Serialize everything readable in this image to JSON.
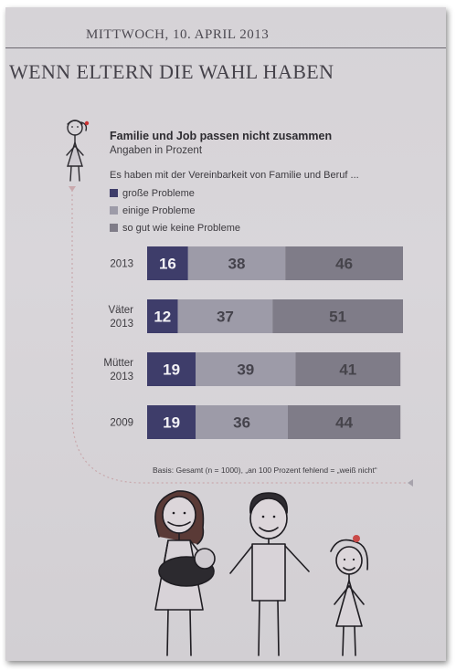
{
  "header": {
    "date": "MITTWOCH, 10. APRIL 2013",
    "headline": "WENN ELTERN DIE WAHL HABEN"
  },
  "chart_data": {
    "type": "bar",
    "orientation": "horizontal",
    "stacked": true,
    "title": "Familie und Job passen nicht zusammen",
    "subtitle": "Angaben in Prozent",
    "intro": "Es haben mit der Vereinbarkeit von Familie und Beruf ...",
    "categories": [
      [
        "2013"
      ],
      [
        "Väter",
        "2013"
      ],
      [
        "Mütter",
        "2013"
      ],
      [
        "2009"
      ]
    ],
    "series": [
      {
        "name": "große Probleme",
        "values": [
          16,
          12,
          19,
          19
        ],
        "color": "#3e3d6a",
        "label_color": "#f2f1f5"
      },
      {
        "name": "einige Probleme",
        "values": [
          38,
          37,
          39,
          36
        ],
        "color": "#9d9ba8",
        "label_color": "#45434c"
      },
      {
        "name": "so gut wie keine Probleme",
        "values": [
          46,
          51,
          41,
          44
        ],
        "color": "#7f7c88",
        "label_color": "#46444b"
      }
    ],
    "xlim": [
      0,
      100
    ],
    "legend": "top-left",
    "grid": false,
    "footnote": "Basis: Gesamt (n = 1000), „an 100 Prozent fehlend = „weiß nicht“"
  }
}
